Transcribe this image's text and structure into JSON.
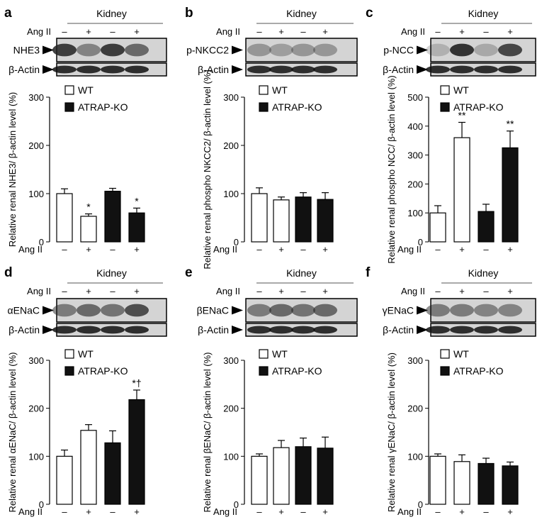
{
  "figure": {
    "header_label": "Kidney",
    "treatment_label": "Ang II",
    "signs": [
      "–",
      "+",
      "–",
      "+"
    ],
    "loading_label": "β-Actin",
    "legend": [
      "WT",
      "ATRAP-KO"
    ],
    "colors": {
      "wt_fill": "#ffffff",
      "ko_fill": "#111111",
      "blot_bg": "#d4d4d4"
    }
  },
  "panels": [
    {
      "letter": "a",
      "protein": "NHE3"
    },
    {
      "letter": "b",
      "protein": "p-NKCC2"
    },
    {
      "letter": "c",
      "protein": "p-NCC"
    },
    {
      "letter": "d",
      "protein": "αENaC"
    },
    {
      "letter": "e",
      "protein": "βENaC"
    },
    {
      "letter": "f",
      "protein": "γENaC"
    }
  ],
  "chart_data": [
    {
      "type": "bar",
      "panel": "a",
      "ylabel": "Relative renal NHE3/ β-actin level (%)",
      "ylim": [
        0,
        300
      ],
      "yticks": [
        0,
        100,
        200,
        300
      ],
      "xlabel": "Ang II",
      "categories": [
        "–",
        "+",
        "–",
        "+"
      ],
      "values": [
        100,
        53,
        105,
        60
      ],
      "errors": [
        10,
        5,
        6,
        10
      ],
      "groups": [
        "WT",
        "WT",
        "ATRAP-KO",
        "ATRAP-KO"
      ],
      "annotations": [
        "",
        "*",
        "",
        "*"
      ],
      "legend": [
        "WT",
        "ATRAP-KO"
      ]
    },
    {
      "type": "bar",
      "panel": "b",
      "ylabel": "Relative renal phospho NKCC2/ β-actin level (%)",
      "ylim": [
        0,
        300
      ],
      "yticks": [
        0,
        100,
        200,
        300
      ],
      "xlabel": "Ang II",
      "categories": [
        "–",
        "+",
        "–",
        "+"
      ],
      "values": [
        100,
        87,
        93,
        88
      ],
      "errors": [
        12,
        6,
        9,
        14
      ],
      "groups": [
        "WT",
        "WT",
        "ATRAP-KO",
        "ATRAP-KO"
      ],
      "annotations": [
        "",
        "",
        "",
        ""
      ],
      "legend": [
        "WT",
        "ATRAP-KO"
      ]
    },
    {
      "type": "bar",
      "panel": "c",
      "ylabel": "Relative renal phospho NCC/ β-actin level (%)",
      "ylim": [
        0,
        500
      ],
      "yticks": [
        0,
        100,
        200,
        300,
        400,
        500
      ],
      "xlabel": "Ang II",
      "categories": [
        "–",
        "+",
        "–",
        "+"
      ],
      "values": [
        100,
        360,
        105,
        325
      ],
      "errors": [
        25,
        53,
        25,
        58
      ],
      "groups": [
        "WT",
        "WT",
        "ATRAP-KO",
        "ATRAP-KO"
      ],
      "annotations": [
        "",
        "**",
        "",
        "**"
      ],
      "legend": [
        "WT",
        "ATRAP-KO"
      ]
    },
    {
      "type": "bar",
      "panel": "d",
      "ylabel": "Relative renal αENaC/ β-actin level (%)",
      "ylim": [
        0,
        300
      ],
      "yticks": [
        0,
        100,
        200,
        300
      ],
      "xlabel": "Ang II",
      "categories": [
        "–",
        "+",
        "–",
        "+"
      ],
      "values": [
        100,
        154,
        128,
        218
      ],
      "errors": [
        13,
        12,
        25,
        20
      ],
      "groups": [
        "WT",
        "WT",
        "ATRAP-KO",
        "ATRAP-KO"
      ],
      "annotations": [
        "",
        "",
        "",
        "*†"
      ],
      "legend": [
        "WT",
        "ATRAP-KO"
      ]
    },
    {
      "type": "bar",
      "panel": "e",
      "ylabel": "Relative renal βENaC/ β-actin level (%)",
      "ylim": [
        0,
        300
      ],
      "yticks": [
        0,
        100,
        200,
        300
      ],
      "xlabel": "Ang II",
      "categories": [
        "–",
        "+",
        "–",
        "+"
      ],
      "values": [
        100,
        118,
        120,
        117
      ],
      "errors": [
        5,
        15,
        18,
        23
      ],
      "groups": [
        "WT",
        "WT",
        "ATRAP-KO",
        "ATRAP-KO"
      ],
      "annotations": [
        "",
        "",
        "",
        ""
      ],
      "legend": [
        "WT",
        "ATRAP-KO"
      ]
    },
    {
      "type": "bar",
      "panel": "f",
      "ylabel": "Relative renal γENaC/ β-actin level (%)",
      "ylim": [
        0,
        300
      ],
      "yticks": [
        0,
        100,
        200,
        300
      ],
      "xlabel": "Ang II",
      "categories": [
        "–",
        "+",
        "–",
        "+"
      ],
      "values": [
        100,
        89,
        85,
        80
      ],
      "errors": [
        5,
        14,
        11,
        8
      ],
      "groups": [
        "WT",
        "WT",
        "ATRAP-KO",
        "ATRAP-KO"
      ],
      "annotations": [
        "",
        "",
        "",
        ""
      ],
      "legend": [
        "WT",
        "ATRAP-KO"
      ]
    }
  ]
}
